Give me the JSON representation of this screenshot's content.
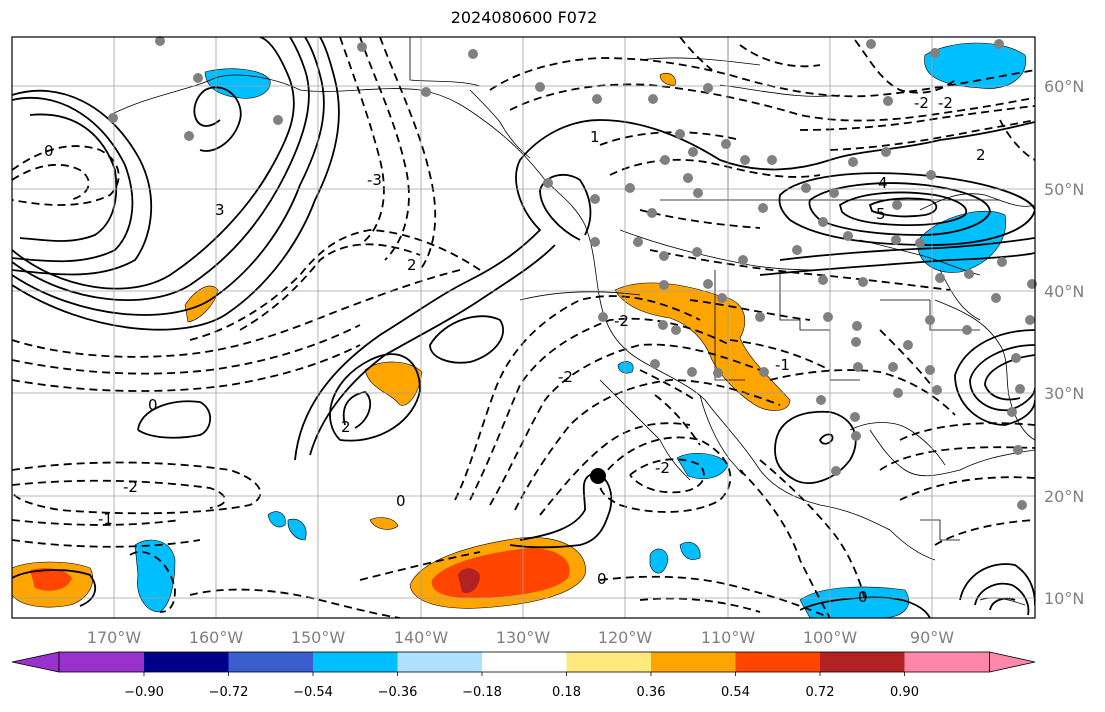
{
  "title": "2024080600 F072",
  "map": {
    "lon_labels": [
      "170°W",
      "160°W",
      "150°W",
      "140°W",
      "130°W",
      "120°W",
      "110°W",
      "100°W",
      "90°W"
    ],
    "lat_labels": [
      "60°N",
      "50°N",
      "40°N",
      "30°N",
      "20°N",
      "10°N"
    ],
    "gridlines": true
  },
  "colorbar": {
    "ticks": [
      "−0.90",
      "−0.72",
      "−0.54",
      "−0.36",
      "−0.18",
      "0.18",
      "0.36",
      "0.54",
      "0.72",
      "0.90"
    ],
    "colors": [
      "#9932cc",
      "#00008b",
      "#3a5fcd",
      "#00bfff",
      "#b0e0ff",
      "#ffffff",
      "#ffe87c",
      "#ffa500",
      "#ff4500",
      "#b22222",
      "#ff88aa"
    ]
  },
  "contour_labels": [
    "0",
    "1",
    "2",
    "3",
    "-1",
    "-2",
    "-3",
    "5",
    "4",
    "-2",
    "-2",
    "-1",
    "0",
    "2",
    "0",
    "-2",
    "0",
    "0",
    "-2",
    "-2",
    "2"
  ],
  "station_marker": "black-dot"
}
